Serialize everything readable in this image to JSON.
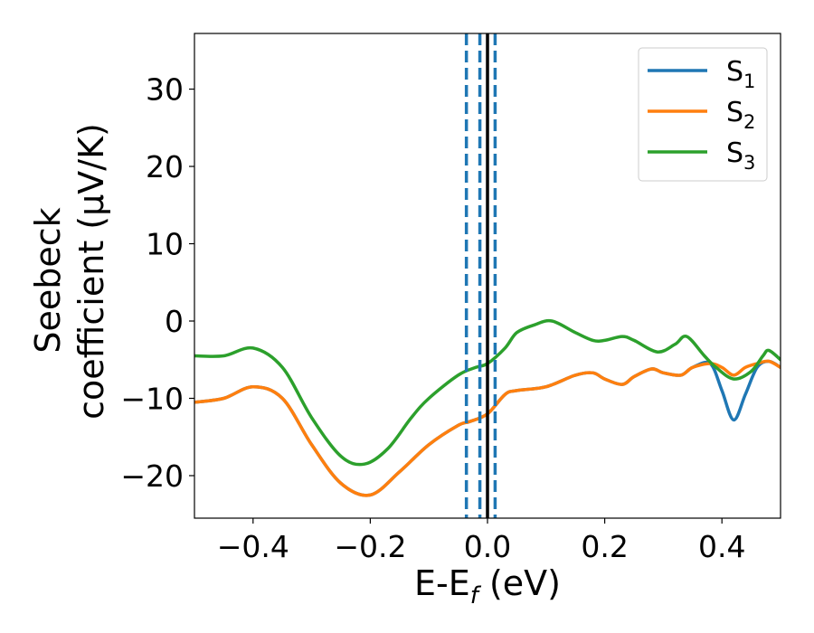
{
  "chart_data": {
    "type": "line",
    "xlabel": "E-E",
    "xlabel_sub": "f",
    "xlabel_unit": " (eV)",
    "ylabel_line1": "Seebeck",
    "ylabel_line2": "coefficient  (μV/K)",
    "xlim": [
      -0.5,
      0.5
    ],
    "ylim": [
      -25.5,
      37.2
    ],
    "xticks": [
      -0.4,
      -0.2,
      0.0,
      0.2,
      0.4
    ],
    "xtick_labels": [
      "−0.4",
      "−0.2",
      "0.0",
      "0.2",
      "0.4"
    ],
    "yticks": [
      30,
      20,
      10,
      0,
      -10,
      -20
    ],
    "ytick_labels": [
      "30",
      "20",
      "10",
      "0",
      "−10",
      "−20"
    ],
    "grid": false,
    "legend_position": "top-right",
    "vlines": [
      {
        "x": -0.036,
        "style": "dashed",
        "color": "#1f77b4"
      },
      {
        "x": -0.013,
        "style": "dashed",
        "color": "#1f77b4"
      },
      {
        "x": 0.013,
        "style": "dashed",
        "color": "#1f77b4"
      },
      {
        "x": 0.0,
        "style": "solid",
        "color": "#000000"
      }
    ],
    "series": [
      {
        "name": "S",
        "subscript": "1",
        "color": "#1f77b4",
        "x": [
          -0.5,
          -0.45,
          -0.4,
          -0.35,
          -0.3,
          -0.25,
          -0.2,
          -0.15,
          -0.1,
          -0.05,
          -0.03,
          0.0,
          0.03,
          0.05,
          0.1,
          0.15,
          0.18,
          0.2,
          0.23,
          0.25,
          0.28,
          0.3,
          0.33,
          0.35,
          0.38,
          0.4,
          0.42,
          0.44,
          0.46,
          0.48,
          0.5
        ],
        "y": [
          -10.5,
          -10.0,
          -8.5,
          -10.0,
          -16.0,
          -21.0,
          -22.5,
          -19.5,
          -16.0,
          -13.5,
          -13.0,
          -12.0,
          -9.5,
          -9.0,
          -8.5,
          -7.0,
          -6.7,
          -7.5,
          -8.2,
          -7.2,
          -6.2,
          -6.7,
          -7.0,
          -6.0,
          -5.5,
          -9.0,
          -12.8,
          -9.5,
          -6.0,
          -5.2,
          -6.0
        ]
      },
      {
        "name": "S",
        "subscript": "2",
        "color": "#ff7f0e",
        "x": [
          -0.5,
          -0.45,
          -0.4,
          -0.35,
          -0.3,
          -0.25,
          -0.2,
          -0.15,
          -0.1,
          -0.05,
          -0.03,
          0.0,
          0.03,
          0.05,
          0.1,
          0.15,
          0.18,
          0.2,
          0.23,
          0.25,
          0.28,
          0.3,
          0.33,
          0.35,
          0.38,
          0.4,
          0.42,
          0.44,
          0.46,
          0.48,
          0.5
        ],
        "y": [
          -10.5,
          -10.0,
          -8.5,
          -10.0,
          -16.0,
          -21.0,
          -22.5,
          -19.5,
          -16.0,
          -13.5,
          -13.0,
          -12.0,
          -9.5,
          -9.0,
          -8.5,
          -7.0,
          -6.7,
          -7.5,
          -8.2,
          -7.2,
          -6.2,
          -6.7,
          -7.0,
          -6.0,
          -5.5,
          -6.0,
          -7.0,
          -6.0,
          -5.5,
          -5.2,
          -6.0
        ]
      },
      {
        "name": "S",
        "subscript": "3",
        "color": "#2ca02c",
        "x": [
          -0.5,
          -0.45,
          -0.4,
          -0.35,
          -0.3,
          -0.25,
          -0.21,
          -0.17,
          -0.13,
          -0.1,
          -0.05,
          -0.02,
          0.0,
          0.03,
          0.05,
          0.08,
          0.11,
          0.15,
          0.18,
          0.2,
          0.23,
          0.25,
          0.29,
          0.32,
          0.34,
          0.37,
          0.39,
          0.42,
          0.45,
          0.47,
          0.48,
          0.5
        ],
        "y": [
          -4.5,
          -4.5,
          -3.5,
          -6.0,
          -12.5,
          -17.5,
          -18.5,
          -16.5,
          -12.5,
          -10.0,
          -7.0,
          -6.0,
          -5.5,
          -3.5,
          -1.5,
          -0.5,
          0.0,
          -1.5,
          -2.5,
          -2.5,
          -2.0,
          -2.5,
          -4.0,
          -3.0,
          -2.0,
          -4.5,
          -6.0,
          -7.5,
          -6.5,
          -4.5,
          -3.8,
          -5.0
        ]
      }
    ]
  }
}
